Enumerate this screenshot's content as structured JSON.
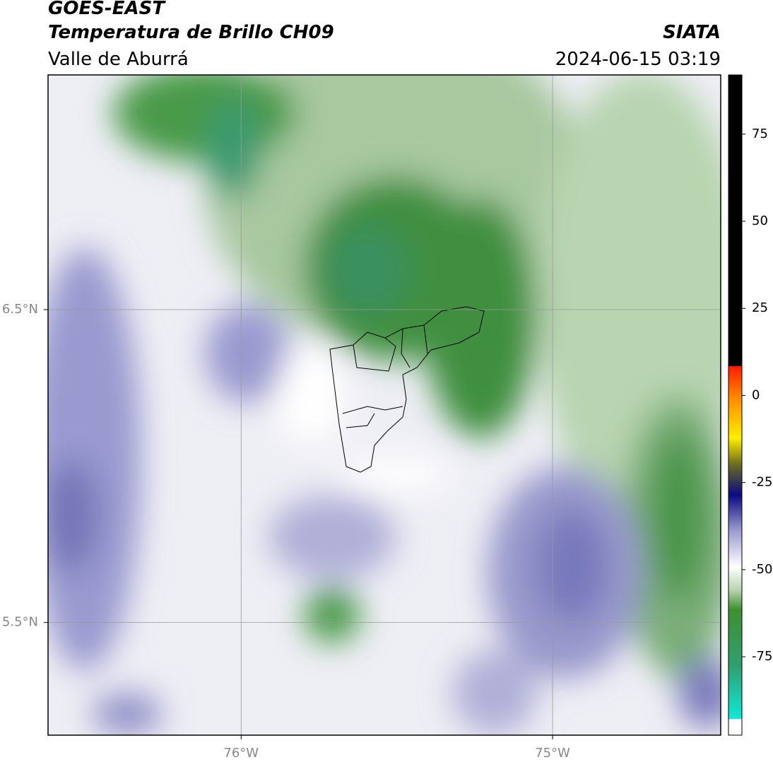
{
  "header": {
    "title": "GOES-EAST",
    "subtitle": "Temperatura de Brillo CH09",
    "region": "Valle de Aburrá",
    "source": "SIATA",
    "datetime": "2024-06-15 03:19"
  },
  "chart_data": {
    "type": "map",
    "xlim": [
      -76.62,
      -74.46
    ],
    "ylim": [
      5.14,
      7.25
    ],
    "xticks": [
      {
        "value": -76,
        "label": "76°W"
      },
      {
        "value": -75,
        "label": "75°W"
      }
    ],
    "yticks": [
      {
        "value": 5.5,
        "label": "5.5°N"
      },
      {
        "value": 6.5,
        "label": "6.5°N"
      }
    ],
    "grid": true,
    "colorbar": {
      "lim": [
        -97.5,
        92
      ],
      "ticks": [
        -75,
        -50,
        -25,
        0,
        25,
        50,
        75
      ]
    }
  }
}
